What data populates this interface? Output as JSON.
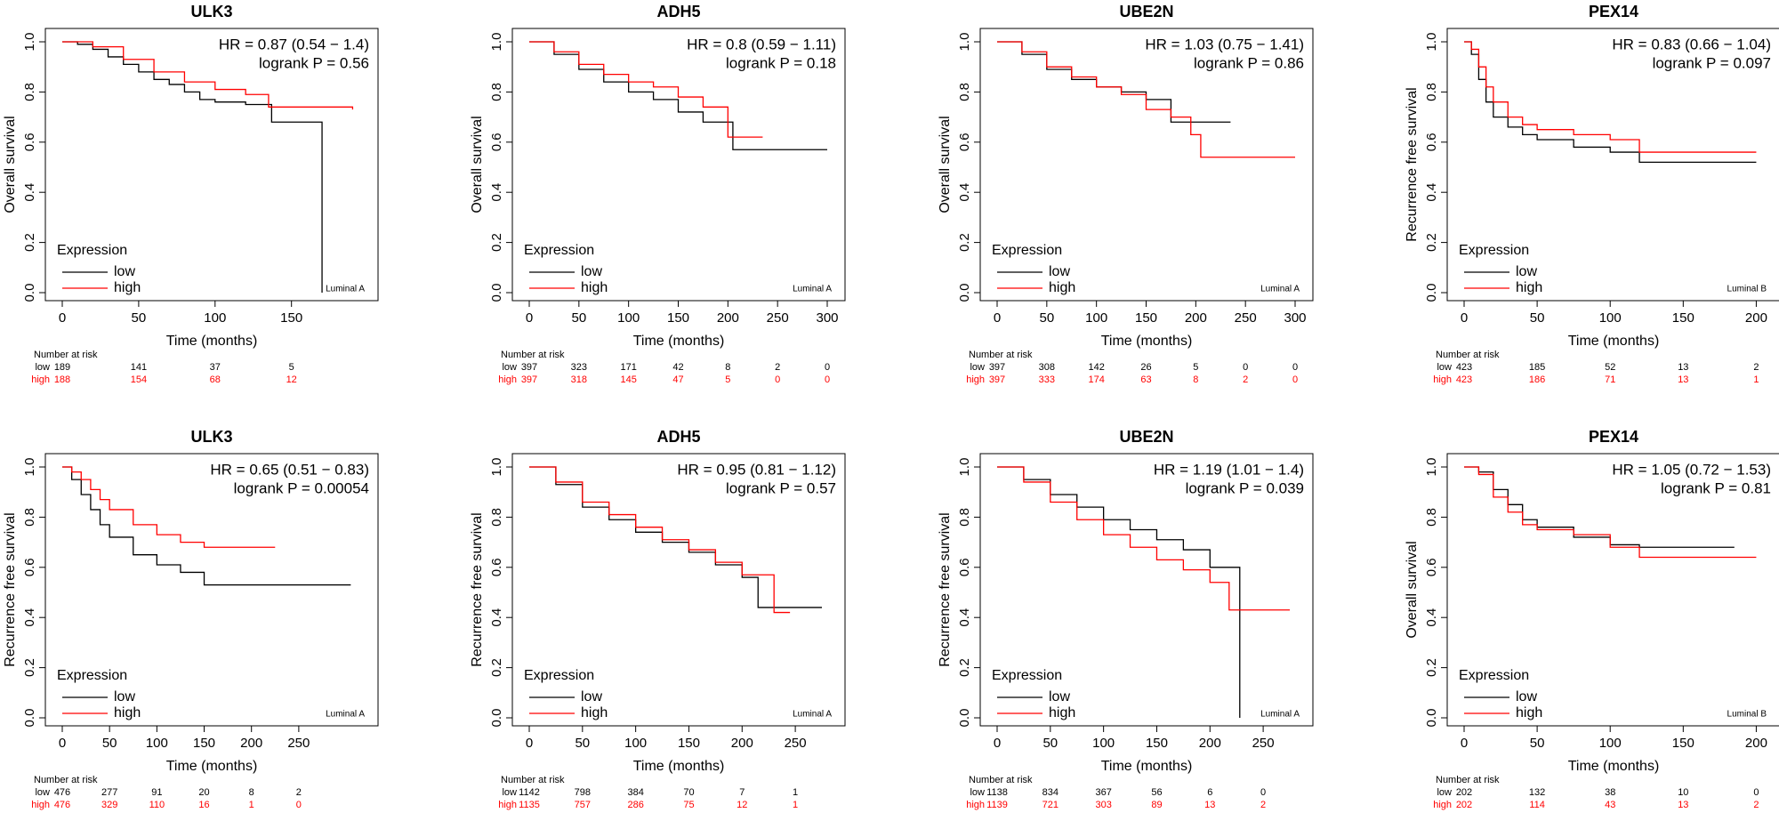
{
  "chart_data": [
    {
      "type": "line",
      "title": "ULK3",
      "xlabel": "Time (months)",
      "ylabel": "Overall survival",
      "hr": "HR = 0.87 (0.54 − 1.4)",
      "logrank": "logrank P = 0.56",
      "annotation": "Luminal A",
      "legend_title": "Expression",
      "xlim": [
        0,
        195
      ],
      "xticks": [
        0,
        50,
        100,
        150
      ],
      "ylim": [
        0,
        1
      ],
      "yticks": [
        {
          "value": 0,
          "label": "0.0"
        },
        0.2,
        0.4,
        0.6,
        0.8,
        {
          "value": 1,
          "label": "1.0"
        }
      ],
      "series": [
        {
          "name": "low",
          "color": "#000000",
          "x": [
            0,
            10,
            20,
            30,
            40,
            50,
            60,
            70,
            80,
            90,
            100,
            120,
            137,
            170,
            170
          ],
          "values": [
            1,
            0.99,
            0.97,
            0.94,
            0.91,
            0.88,
            0.85,
            0.83,
            0.8,
            0.77,
            0.76,
            0.75,
            0.68,
            0.68,
            0
          ]
        },
        {
          "name": "high",
          "color": "#ff0000",
          "x": [
            0,
            20,
            40,
            60,
            80,
            100,
            120,
            135,
            190
          ],
          "values": [
            1,
            0.98,
            0.93,
            0.88,
            0.84,
            0.81,
            0.79,
            0.74,
            0.73
          ]
        }
      ],
      "risk_table": {
        "title": "Number at risk",
        "rows": [
          {
            "name": "low",
            "values": [
              189,
              141,
              37,
              5
            ]
          },
          {
            "name": "high",
            "values": [
              188,
              154,
              68,
              12
            ]
          }
        ]
      }
    },
    {
      "type": "line",
      "title": "ADH5",
      "xlabel": "Time (months)",
      "ylabel": "Overall survival",
      "hr": "HR = 0.8 (0.59 − 1.11)",
      "logrank": "logrank P = 0.18",
      "annotation": "Luminal A",
      "legend_title": "Expression",
      "xlim": [
        0,
        300
      ],
      "xticks": [
        0,
        50,
        100,
        150,
        200,
        250,
        300
      ],
      "ylim": [
        0,
        1
      ],
      "yticks": [
        {
          "value": 0,
          "label": "0.0"
        },
        0.2,
        0.4,
        0.6,
        0.8,
        {
          "value": 1,
          "label": "1.0"
        }
      ],
      "series": [
        {
          "name": "low",
          "color": "#000000",
          "x": [
            0,
            25,
            50,
            75,
            100,
            125,
            150,
            175,
            205,
            300
          ],
          "values": [
            1,
            0.95,
            0.89,
            0.84,
            0.8,
            0.77,
            0.72,
            0.68,
            0.57,
            0.57
          ]
        },
        {
          "name": "high",
          "color": "#ff0000",
          "x": [
            0,
            25,
            50,
            75,
            100,
            125,
            150,
            175,
            200,
            235
          ],
          "values": [
            1,
            0.96,
            0.91,
            0.87,
            0.84,
            0.82,
            0.78,
            0.74,
            0.62,
            0.62
          ]
        }
      ],
      "risk_table": {
        "title": "Number at risk",
        "rows": [
          {
            "name": "low",
            "values": [
              397,
              323,
              171,
              42,
              8,
              2,
              0
            ]
          },
          {
            "name": "high",
            "values": [
              397,
              318,
              145,
              47,
              5,
              0,
              0
            ]
          }
        ]
      }
    },
    {
      "type": "line",
      "title": "UBE2N",
      "xlabel": "Time (months)",
      "ylabel": "Overall survival",
      "hr": "HR = 1.03 (0.75 − 1.41)",
      "logrank": "logrank P = 0.86",
      "annotation": "Luminal A",
      "legend_title": "Expression",
      "xlim": [
        0,
        300
      ],
      "xticks": [
        0,
        50,
        100,
        150,
        200,
        250,
        300
      ],
      "ylim": [
        0,
        1
      ],
      "yticks": [
        {
          "value": 0,
          "label": "0.0"
        },
        0.2,
        0.4,
        0.6,
        0.8,
        {
          "value": 1,
          "label": "1.0"
        }
      ],
      "series": [
        {
          "name": "low",
          "color": "#000000",
          "x": [
            0,
            25,
            50,
            75,
            100,
            125,
            150,
            175,
            235
          ],
          "values": [
            1,
            0.95,
            0.89,
            0.85,
            0.82,
            0.8,
            0.77,
            0.68,
            0.68
          ]
        },
        {
          "name": "high",
          "color": "#ff0000",
          "x": [
            0,
            25,
            50,
            75,
            100,
            125,
            150,
            175,
            195,
            205,
            300
          ],
          "values": [
            1,
            0.96,
            0.9,
            0.86,
            0.82,
            0.79,
            0.73,
            0.7,
            0.63,
            0.54,
            0.54
          ]
        }
      ],
      "risk_table": {
        "title": "Number at risk",
        "rows": [
          {
            "name": "low",
            "values": [
              397,
              308,
              142,
              26,
              5,
              0,
              0
            ]
          },
          {
            "name": "high",
            "values": [
              397,
              333,
              174,
              63,
              8,
              2,
              0
            ]
          }
        ]
      }
    },
    {
      "type": "line",
      "title": "PEX14",
      "xlabel": "Time (months)",
      "ylabel": "Recurrence free survival",
      "hr": "HR = 0.83 (0.66 − 1.04)",
      "logrank": "logrank P = 0.097",
      "annotation": "Luminal B",
      "legend_title": "Expression",
      "xlim": [
        0,
        204
      ],
      "xticks": [
        0,
        50,
        100,
        150,
        200
      ],
      "ylim": [
        0,
        1
      ],
      "yticks": [
        {
          "value": 0,
          "label": "0.0"
        },
        0.2,
        0.4,
        0.6,
        0.8,
        {
          "value": 1,
          "label": "1.0"
        }
      ],
      "series": [
        {
          "name": "low",
          "color": "#000000",
          "x": [
            0,
            5,
            10,
            15,
            20,
            30,
            40,
            50,
            75,
            100,
            120,
            200
          ],
          "values": [
            1,
            0.95,
            0.85,
            0.76,
            0.7,
            0.66,
            0.63,
            0.61,
            0.58,
            0.56,
            0.52,
            0.52
          ]
        },
        {
          "name": "high",
          "color": "#ff0000",
          "x": [
            0,
            5,
            10,
            15,
            20,
            30,
            40,
            50,
            75,
            100,
            120,
            200
          ],
          "values": [
            1,
            0.97,
            0.9,
            0.82,
            0.76,
            0.7,
            0.67,
            0.65,
            0.63,
            0.61,
            0.56,
            0.56
          ]
        }
      ],
      "risk_table": {
        "title": "Number at risk",
        "rows": [
          {
            "name": "low",
            "values": [
              423,
              185,
              52,
              13,
              2
            ]
          },
          {
            "name": "high",
            "values": [
              423,
              186,
              71,
              13,
              1
            ]
          }
        ]
      }
    },
    {
      "type": "line",
      "title": "ULK3",
      "xlabel": "Time (months)",
      "ylabel": "Recurrence free survival",
      "hr": "HR = 0.65 (0.51 − 0.83)",
      "logrank": "logrank P = 0.00054",
      "annotation": "Luminal A",
      "legend_title": "Expression",
      "xlim": [
        0,
        315
      ],
      "xticks": [
        0,
        50,
        100,
        150,
        200,
        250
      ],
      "ylim": [
        0,
        1
      ],
      "yticks": [
        {
          "value": 0,
          "label": "0.0"
        },
        0.2,
        0.4,
        0.6,
        0.8,
        {
          "value": 1,
          "label": "1.0"
        }
      ],
      "series": [
        {
          "name": "low",
          "color": "#000000",
          "x": [
            0,
            10,
            20,
            30,
            40,
            50,
            75,
            100,
            125,
            150,
            305
          ],
          "values": [
            1,
            0.95,
            0.89,
            0.83,
            0.77,
            0.72,
            0.65,
            0.61,
            0.58,
            0.53,
            0.53
          ]
        },
        {
          "name": "high",
          "color": "#ff0000",
          "x": [
            0,
            10,
            20,
            30,
            40,
            50,
            75,
            100,
            125,
            150,
            225
          ],
          "values": [
            1,
            0.98,
            0.95,
            0.91,
            0.87,
            0.83,
            0.77,
            0.73,
            0.7,
            0.68,
            0.68
          ]
        }
      ],
      "risk_table": {
        "title": "Number at risk",
        "rows": [
          {
            "name": "low",
            "values": [
              476,
              277,
              91,
              20,
              8,
              2
            ]
          },
          {
            "name": "high",
            "values": [
              476,
              329,
              110,
              16,
              1,
              0
            ]
          }
        ]
      }
    },
    {
      "type": "line",
      "title": "ADH5",
      "xlabel": "Time (months)",
      "ylabel": "Recurrence free survival",
      "hr": "HR = 0.95 (0.81 − 1.12)",
      "logrank": "logrank P = 0.57",
      "annotation": "Luminal A",
      "legend_title": "Expression",
      "xlim": [
        0,
        280
      ],
      "xticks": [
        0,
        50,
        100,
        150,
        200,
        250
      ],
      "ylim": [
        0,
        1
      ],
      "yticks": [
        {
          "value": 0,
          "label": "0.0"
        },
        0.2,
        0.4,
        0.6,
        0.8,
        {
          "value": 1,
          "label": "1.0"
        }
      ],
      "series": [
        {
          "name": "low",
          "color": "#000000",
          "x": [
            0,
            25,
            50,
            75,
            100,
            125,
            150,
            175,
            200,
            215,
            275
          ],
          "values": [
            1,
            0.93,
            0.84,
            0.79,
            0.74,
            0.7,
            0.66,
            0.61,
            0.56,
            0.44,
            0.44
          ]
        },
        {
          "name": "high",
          "color": "#ff0000",
          "x": [
            0,
            25,
            50,
            75,
            100,
            125,
            150,
            175,
            200,
            230,
            245
          ],
          "values": [
            1,
            0.94,
            0.86,
            0.81,
            0.76,
            0.71,
            0.67,
            0.62,
            0.57,
            0.42,
            0.42
          ]
        }
      ],
      "risk_table": {
        "title": "Number at risk",
        "rows": [
          {
            "name": "low",
            "values": [
              1142,
              798,
              384,
              70,
              7,
              1
            ]
          },
          {
            "name": "high",
            "values": [
              1135,
              757,
              286,
              75,
              12,
              1
            ]
          }
        ]
      }
    },
    {
      "type": "line",
      "title": "UBE2N",
      "xlabel": "Time (months)",
      "ylabel": "Recurrence free survival",
      "hr": "HR = 1.19 (1.01 − 1.4)",
      "logrank": "logrank P = 0.039",
      "annotation": "Luminal A",
      "legend_title": "Expression",
      "xlim": [
        0,
        280
      ],
      "xticks": [
        0,
        50,
        100,
        150,
        200,
        250
      ],
      "ylim": [
        0,
        1
      ],
      "yticks": [
        {
          "value": 0,
          "label": "0.0"
        },
        0.2,
        0.4,
        0.6,
        0.8,
        {
          "value": 1,
          "label": "1.0"
        }
      ],
      "series": [
        {
          "name": "low",
          "color": "#000000",
          "x": [
            0,
            25,
            50,
            75,
            100,
            125,
            150,
            175,
            200,
            228,
            228
          ],
          "values": [
            1,
            0.95,
            0.89,
            0.84,
            0.79,
            0.75,
            0.71,
            0.67,
            0.6,
            0.59,
            0
          ]
        },
        {
          "name": "high",
          "color": "#ff0000",
          "x": [
            0,
            25,
            50,
            75,
            100,
            125,
            150,
            175,
            200,
            218,
            275
          ],
          "values": [
            1,
            0.94,
            0.86,
            0.79,
            0.73,
            0.68,
            0.63,
            0.59,
            0.54,
            0.43,
            0.43
          ]
        }
      ],
      "risk_table": {
        "title": "Number at risk",
        "rows": [
          {
            "name": "low",
            "values": [
              1138,
              834,
              367,
              56,
              6,
              0
            ]
          },
          {
            "name": "high",
            "values": [
              1139,
              721,
              303,
              89,
              13,
              2
            ]
          }
        ]
      }
    },
    {
      "type": "line",
      "title": "PEX14",
      "xlabel": "Time (months)",
      "ylabel": "Overall survival",
      "hr": "HR = 1.05 (0.72 − 1.53)",
      "logrank": "logrank P = 0.81",
      "annotation": "Luminal B",
      "legend_title": "Expression",
      "xlim": [
        0,
        204
      ],
      "xticks": [
        0,
        50,
        100,
        150,
        200
      ],
      "ylim": [
        0,
        1
      ],
      "yticks": [
        {
          "value": 0,
          "label": "0.0"
        },
        0.2,
        0.4,
        0.6,
        0.8,
        {
          "value": 1,
          "label": "1.0"
        }
      ],
      "series": [
        {
          "name": "low",
          "color": "#000000",
          "x": [
            0,
            10,
            20,
            30,
            40,
            50,
            75,
            100,
            120,
            185
          ],
          "values": [
            1,
            0.98,
            0.91,
            0.85,
            0.79,
            0.76,
            0.72,
            0.69,
            0.68,
            0.68
          ]
        },
        {
          "name": "high",
          "color": "#ff0000",
          "x": [
            0,
            10,
            20,
            30,
            40,
            50,
            75,
            100,
            120,
            200
          ],
          "values": [
            1,
            0.97,
            0.88,
            0.82,
            0.77,
            0.75,
            0.73,
            0.68,
            0.64,
            0.64
          ]
        }
      ],
      "risk_table": {
        "title": "Number at risk",
        "rows": [
          {
            "name": "low",
            "values": [
              202,
              132,
              38,
              10,
              0
            ]
          },
          {
            "name": "high",
            "values": [
              202,
              114,
              43,
              13,
              2
            ]
          }
        ]
      }
    }
  ]
}
